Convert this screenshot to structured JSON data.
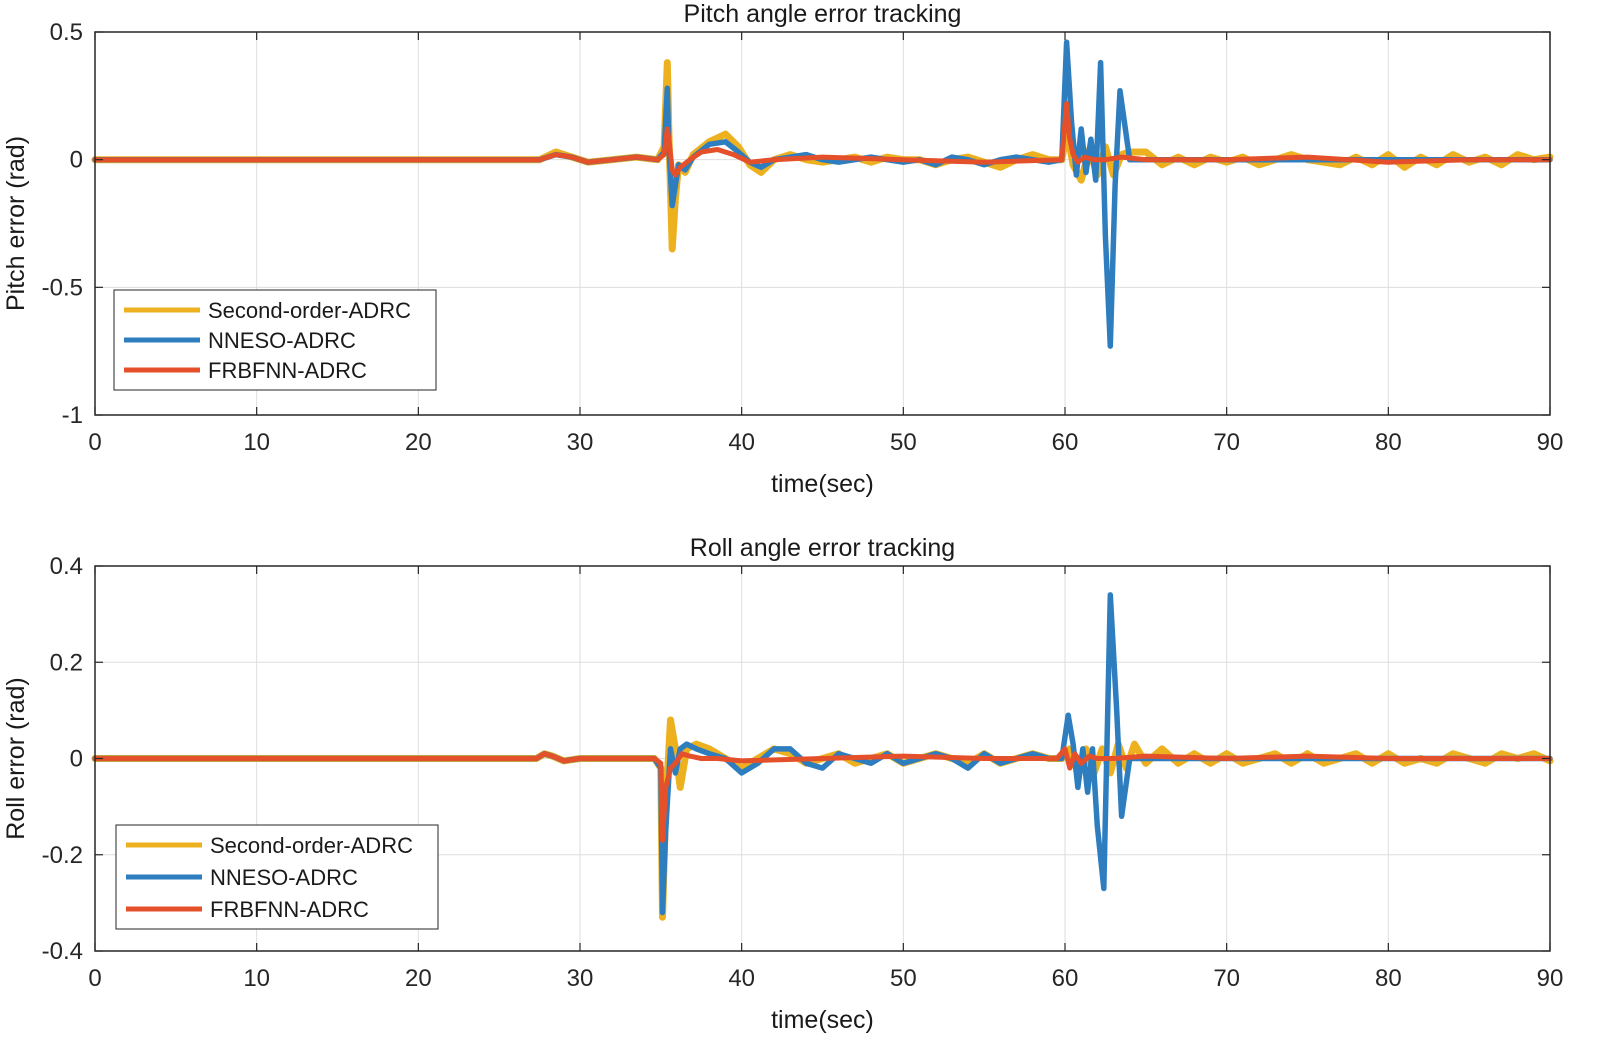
{
  "colors": {
    "Second-order-ADRC": "#EDB120",
    "NNESO-ADRC": "#2E7EBF",
    "FRBFNN-ADRC": "#E4502A",
    "grid": "#dedede",
    "axis": "#262626"
  },
  "chart_data": [
    {
      "type": "line",
      "title": "Pitch angle error tracking",
      "xlabel": "time(sec)",
      "ylabel": "Pitch error (rad)",
      "xlim": [
        0,
        90
      ],
      "ylim": [
        -1,
        0.5
      ],
      "xticks": [
        0,
        10,
        20,
        30,
        40,
        50,
        60,
        70,
        80,
        90
      ],
      "xtick_labels": [
        "0",
        "10",
        "20",
        "30",
        "40",
        "50",
        "60",
        "70",
        "80",
        "90"
      ],
      "yticks": [
        0.5,
        0,
        -0.5,
        -1
      ],
      "ytick_labels": [
        "0.5",
        "0",
        "-0.5",
        "-1"
      ],
      "grid": true,
      "legend_position": "bottom-left",
      "series": [
        {
          "name": "Second-order-ADRC",
          "x": [
            0,
            27.5,
            28.5,
            29.5,
            30.5,
            32,
            33.5,
            34.8,
            35.2,
            35.4,
            35.5,
            35.7,
            35.9,
            36.1,
            36.5,
            37,
            38,
            39,
            39.8,
            40.5,
            41.2,
            42,
            43,
            44,
            45,
            46,
            47,
            48,
            49,
            50,
            51,
            52,
            53,
            54,
            55,
            56,
            57,
            58,
            59,
            59.8,
            60.1,
            60.3,
            60.5,
            61,
            61.5,
            62,
            62.5,
            63,
            63.5,
            64,
            65,
            66,
            67,
            68,
            69,
            70,
            71,
            72,
            73,
            74,
            75,
            76,
            77,
            78,
            79,
            80,
            81,
            82,
            83,
            84,
            85,
            86,
            87,
            88,
            89,
            90
          ],
          "values": [
            0,
            0,
            0.03,
            0.01,
            -0.01,
            0,
            0.01,
            0,
            0.05,
            0.38,
            0.1,
            -0.35,
            -0.15,
            -0.02,
            -0.05,
            0.02,
            0.07,
            0.1,
            0.05,
            -0.02,
            -0.05,
            0,
            0.02,
            0,
            -0.01,
            0,
            0.01,
            -0.01,
            0.01,
            0,
            0,
            -0.02,
            0,
            0.01,
            -0.01,
            -0.03,
            0,
            0.02,
            0,
            0,
            0.1,
            0.05,
            -0.02,
            -0.08,
            0.04,
            -0.06,
            0.05,
            -0.06,
            0.02,
            0.03,
            0.03,
            -0.02,
            0.01,
            -0.02,
            0.01,
            -0.01,
            0.01,
            -0.02,
            0,
            0.02,
            0,
            -0.01,
            -0.02,
            0.01,
            -0.02,
            0.02,
            -0.03,
            0.01,
            -0.02,
            0.02,
            -0.01,
            0.01,
            -0.02,
            0.02,
            0,
            0.01
          ]
        },
        {
          "name": "NNESO-ADRC",
          "x": [
            0,
            27.5,
            28.5,
            29.5,
            30.5,
            32,
            33.5,
            34.8,
            35.2,
            35.4,
            35.5,
            35.7,
            35.9,
            36.1,
            36.5,
            37,
            38,
            39,
            39.8,
            40.5,
            41.2,
            42,
            43,
            44,
            45,
            46,
            47,
            48,
            49,
            50,
            51,
            52,
            53,
            54,
            55,
            56,
            57,
            58,
            59,
            59.8,
            60.1,
            60.4,
            60.7,
            61,
            61.3,
            61.6,
            61.9,
            62.2,
            62.5,
            62.8,
            63.1,
            63.4,
            64,
            65,
            70,
            80,
            90
          ],
          "values": [
            0,
            0,
            0.02,
            0.01,
            -0.01,
            0,
            0.01,
            0,
            0.03,
            0.28,
            0.05,
            -0.18,
            -0.1,
            -0.02,
            -0.04,
            0.01,
            0.06,
            0.07,
            0.03,
            -0.01,
            -0.03,
            0,
            0.01,
            0.02,
            0,
            -0.01,
            0,
            0.01,
            0,
            -0.01,
            0,
            -0.02,
            0.01,
            0,
            -0.02,
            0,
            0.01,
            0,
            -0.01,
            0,
            0.46,
            0.15,
            -0.06,
            0.12,
            -0.05,
            0.08,
            -0.08,
            0.38,
            -0.3,
            -0.73,
            -0.1,
            0.27,
            0,
            0,
            0,
            0,
            0
          ]
        },
        {
          "name": "FRBFNN-ADRC",
          "x": [
            0,
            27.5,
            28.5,
            29.5,
            30.5,
            32,
            33.5,
            34.8,
            35.2,
            35.4,
            35.5,
            35.7,
            35.9,
            36.2,
            36.8,
            37.5,
            38.5,
            39.5,
            40.5,
            42,
            45,
            50,
            55,
            59.8,
            60.1,
            60.3,
            60.5,
            60.8,
            61.2,
            61.8,
            62.5,
            63.5,
            65,
            70,
            75,
            80,
            85,
            90
          ],
          "values": [
            0,
            0,
            0.02,
            0.01,
            -0.01,
            0,
            0.01,
            0,
            0.02,
            0.12,
            0.08,
            -0.04,
            -0.06,
            -0.03,
            0,
            0.03,
            0.04,
            0.02,
            -0.01,
            0,
            0.01,
            0,
            -0.01,
            0,
            0.22,
            0.08,
            0.02,
            -0.01,
            0.01,
            0,
            0,
            0.01,
            0,
            0,
            0.01,
            -0.01,
            0,
            0
          ]
        }
      ]
    },
    {
      "type": "line",
      "title": "Roll angle error tracking",
      "xlabel": "time(sec)",
      "ylabel": "Roll error (rad)",
      "xlim": [
        0,
        90
      ],
      "ylim": [
        -0.4,
        0.4
      ],
      "xticks": [
        0,
        10,
        20,
        30,
        40,
        50,
        60,
        70,
        80,
        90
      ],
      "xtick_labels": [
        "0",
        "10",
        "20",
        "30",
        "40",
        "50",
        "60",
        "70",
        "80",
        "90"
      ],
      "yticks": [
        0.4,
        0.2,
        0,
        -0.2,
        -0.4
      ],
      "ytick_labels": [
        "0.4",
        "0.2",
        "0",
        "-0.2",
        "-0.4"
      ],
      "grid": true,
      "legend_position": "bottom-left",
      "series": [
        {
          "name": "Second-order-ADRC",
          "x": [
            0,
            27.3,
            27.8,
            28.3,
            29,
            30,
            31,
            32,
            33,
            34.6,
            35,
            35.1,
            35.3,
            35.6,
            35.9,
            36.2,
            36.6,
            37.2,
            38,
            39,
            40,
            41,
            42,
            43,
            44,
            45,
            46,
            47,
            48,
            49,
            50,
            51,
            52,
            53,
            54,
            55,
            56,
            57,
            58,
            59,
            59.8,
            60.3,
            60.8,
            61.3,
            61.8,
            62.3,
            62.8,
            63.3,
            63.8,
            64.3,
            65,
            66,
            67,
            68,
            69,
            70,
            71,
            72,
            73,
            74,
            75,
            76,
            77,
            78,
            79,
            80,
            81,
            82,
            83,
            84,
            85,
            86,
            87,
            88,
            89,
            90
          ],
          "values": [
            0,
            0,
            0.01,
            0.005,
            -0.005,
            0,
            0,
            0,
            0,
            0,
            -0.02,
            -0.33,
            -0.1,
            0.08,
            0.02,
            -0.06,
            0.02,
            0.03,
            0.02,
            0,
            -0.02,
            0,
            0.02,
            0.01,
            -0.01,
            0,
            0.01,
            -0.01,
            0,
            0.01,
            -0.01,
            0,
            0.01,
            0,
            -0.01,
            0.01,
            -0.01,
            0,
            0.01,
            0,
            0,
            0.02,
            -0.03,
            0.02,
            -0.03,
            0.02,
            -0.03,
            0.03,
            -0.02,
            0.03,
            -0.01,
            0.02,
            -0.01,
            0.01,
            -0.01,
            0.01,
            -0.01,
            0,
            0.01,
            -0.01,
            0.01,
            -0.01,
            0,
            0.01,
            -0.01,
            0.01,
            -0.01,
            0,
            -0.01,
            0.01,
            0,
            -0.01,
            0.01,
            0,
            0.01,
            -0.005
          ]
        },
        {
          "name": "NNESO-ADRC",
          "x": [
            0,
            27.3,
            27.8,
            28.3,
            29,
            30,
            31,
            32,
            33,
            34.6,
            35,
            35.1,
            35.3,
            35.6,
            35.9,
            36.2,
            36.6,
            37.2,
            38,
            39,
            40,
            41,
            42,
            43,
            44,
            45,
            46,
            47,
            48,
            49,
            50,
            51,
            52,
            53,
            54,
            55,
            56,
            57,
            58,
            59,
            59.8,
            60.2,
            60.5,
            60.8,
            61.1,
            61.4,
            61.7,
            62,
            62.4,
            62.8,
            63.2,
            63.5,
            64,
            65,
            70,
            80,
            90
          ],
          "values": [
            0,
            0,
            0.01,
            0.005,
            -0.005,
            0,
            0,
            0,
            0,
            0,
            -0.02,
            -0.32,
            -0.15,
            0.02,
            -0.03,
            0.02,
            0.03,
            0.02,
            0.01,
            0,
            -0.03,
            -0.01,
            0.02,
            0.02,
            -0.01,
            -0.02,
            0.01,
            0,
            -0.01,
            0.01,
            -0.01,
            0,
            0.01,
            0,
            -0.02,
            0.01,
            -0.01,
            0,
            0.01,
            0,
            0,
            0.09,
            0.03,
            -0.06,
            0.02,
            -0.07,
            0.02,
            -0.14,
            -0.27,
            0.34,
            0.1,
            -0.12,
            0,
            0,
            0,
            0,
            0
          ]
        },
        {
          "name": "FRBFNN-ADRC",
          "x": [
            0,
            27.3,
            27.8,
            28.3,
            29,
            30,
            31,
            32,
            33,
            34.6,
            35,
            35.1,
            35.3,
            35.6,
            35.9,
            36.3,
            36.8,
            37.5,
            38.5,
            40,
            45,
            50,
            55,
            59.5,
            60,
            60.3,
            60.6,
            61,
            61.5,
            62,
            63,
            65,
            70,
            75,
            80,
            85,
            90
          ],
          "values": [
            0,
            0,
            0.01,
            0.005,
            -0.005,
            0,
            0,
            0,
            0,
            0,
            -0.01,
            -0.17,
            -0.06,
            -0.02,
            -0.01,
            0.01,
            0.005,
            0,
            0,
            -0.005,
            0,
            0.005,
            0,
            0,
            0.02,
            -0.02,
            0.01,
            -0.01,
            0.005,
            0,
            0,
            0.005,
            0,
            0.005,
            0,
            0,
            0
          ]
        }
      ]
    }
  ]
}
